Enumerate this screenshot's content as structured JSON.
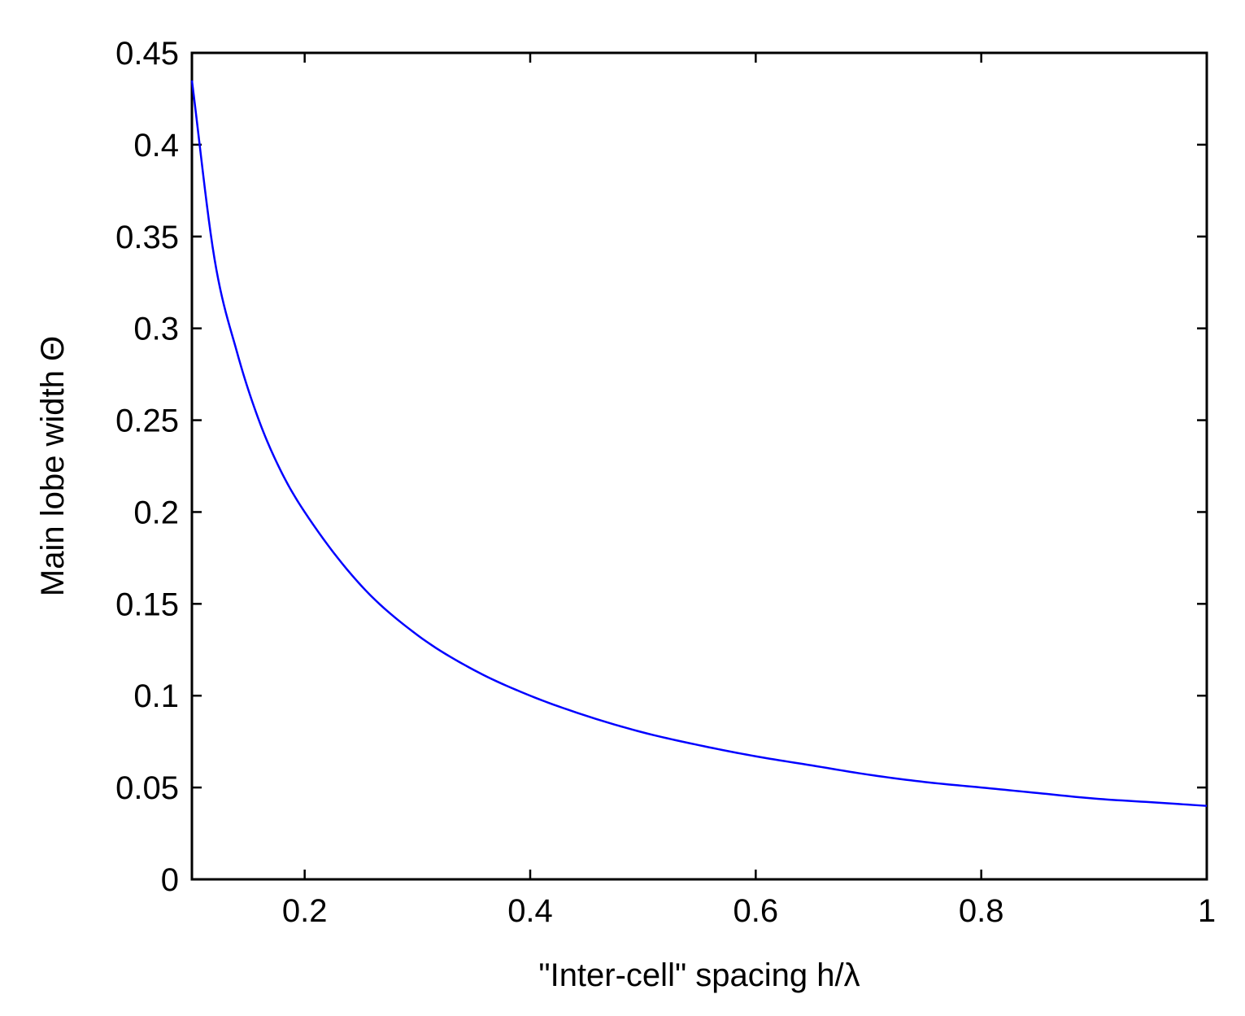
{
  "chart_data": {
    "type": "line",
    "title": "",
    "xlabel": "\"Inter-cell\" spacing h/λ",
    "ylabel": "Main lobe width Θ",
    "xlim": [
      0.1,
      1.0
    ],
    "ylim": [
      0,
      0.45
    ],
    "xticks": [
      0.2,
      0.4,
      0.6,
      0.8,
      1.0
    ],
    "xtick_labels": [
      "0.2",
      "0.4",
      "0.6",
      "0.8",
      "1"
    ],
    "yticks": [
      0,
      0.05,
      0.1,
      0.15,
      0.2,
      0.25,
      0.3,
      0.35,
      0.4,
      0.45
    ],
    "ytick_labels": [
      "0",
      "0.05",
      "0.1",
      "0.15",
      "0.2",
      "0.25",
      "0.3",
      "0.35",
      "0.4",
      "0.45"
    ],
    "grid": false,
    "series": [
      {
        "color": "#0000ff",
        "x": [
          0.1,
          0.12,
          0.14,
          0.16,
          0.18,
          0.2,
          0.25,
          0.3,
          0.35,
          0.4,
          0.45,
          0.5,
          0.55,
          0.6,
          0.65,
          0.7,
          0.75,
          0.8,
          0.85,
          0.9,
          0.95,
          1.0
        ],
        "y": [
          0.435,
          0.338,
          0.287,
          0.249,
          0.221,
          0.2,
          0.16,
          0.133,
          0.114,
          0.1,
          0.089,
          0.08,
          0.073,
          0.067,
          0.062,
          0.057,
          0.053,
          0.05,
          0.047,
          0.044,
          0.042,
          0.04
        ]
      }
    ]
  }
}
